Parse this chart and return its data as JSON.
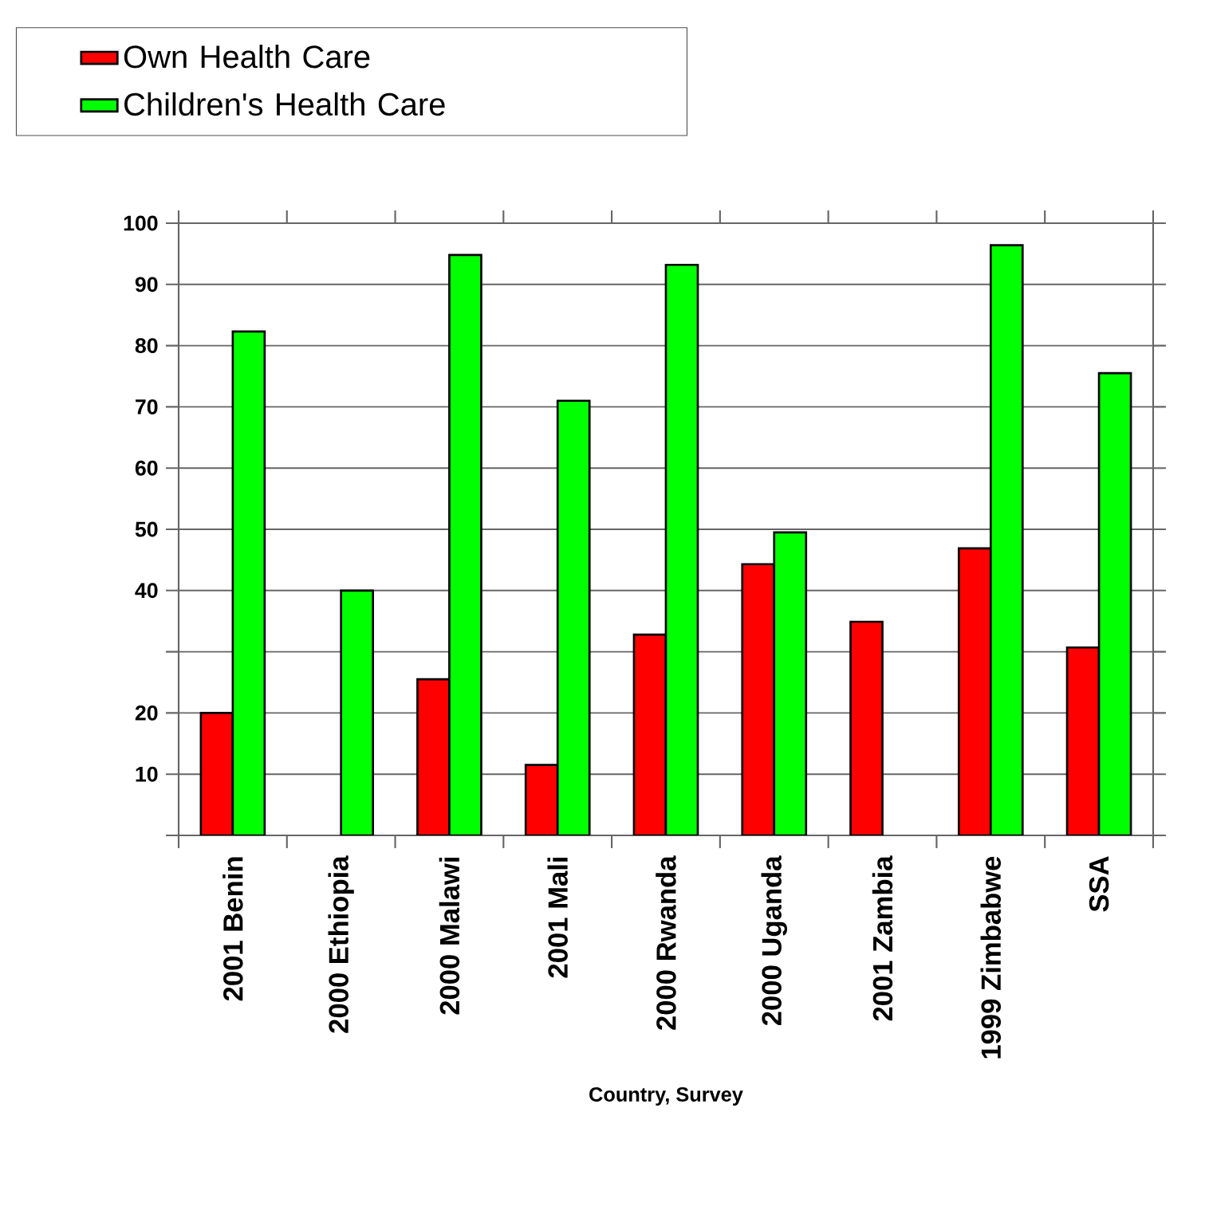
{
  "chart_data": {
    "type": "bar",
    "categories": [
      "2001 Benin",
      "2000 Ethiopia",
      "2000 Malawi",
      "2001 Mali",
      "2000 Rwanda",
      "2000 Uganda",
      "2001 Zambia",
      "1999 Zimbabwe",
      "SSA"
    ],
    "series": [
      {
        "name": "Own Health Care",
        "color": "#ff0000",
        "values": [
          20,
          null,
          25.5,
          11.5,
          32.8,
          44.3,
          34.9,
          46.9,
          30.7
        ]
      },
      {
        "name": "Children's Health Care",
        "color": "#00ff00",
        "values": [
          82.3,
          40,
          94.8,
          71,
          93.2,
          49.5,
          null,
          96.4,
          75.5
        ]
      }
    ],
    "xlabel": "Country, Survey",
    "ylim": [
      0,
      100
    ],
    "yticks": [
      {
        "value": 0,
        "label": null
      },
      10,
      20,
      {
        "value": 30,
        "label": null
      },
      40,
      50,
      60,
      70,
      80,
      90,
      100
    ],
    "grid": "y",
    "legend": "top left"
  }
}
